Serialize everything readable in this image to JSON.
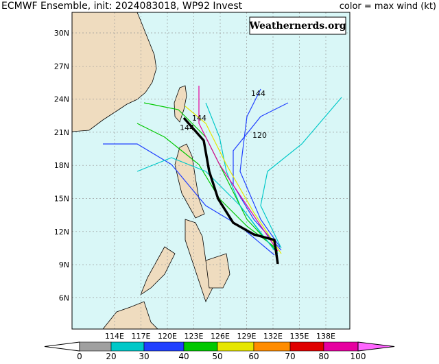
{
  "header": {
    "title": "ECMWF Ensemble, init: 2024083018, WP92 Invest",
    "legend_note": "color = max wind (kt)"
  },
  "watermark": "Weathernerds.org",
  "map": {
    "lat_labels": [
      "30N",
      "27N",
      "24N",
      "21N",
      "18N",
      "15N",
      "12N",
      "9N",
      "6N"
    ],
    "lon_labels": [
      "114E",
      "117E",
      "120E",
      "123E",
      "126E",
      "129E",
      "132E",
      "135E",
      "138E"
    ],
    "track_labels": [
      "144",
      "120",
      "144",
      "144"
    ]
  },
  "colorbar": {
    "ticks": [
      0,
      20,
      30,
      40,
      50,
      60,
      70,
      80,
      100
    ],
    "colors": [
      "#a0a0a0",
      "#00c8c8",
      "#2040ff",
      "#00c800",
      "#e6e600",
      "#ff8c00",
      "#e00000",
      "#e600a0"
    ],
    "overflow_color": "#ff66ff"
  }
}
